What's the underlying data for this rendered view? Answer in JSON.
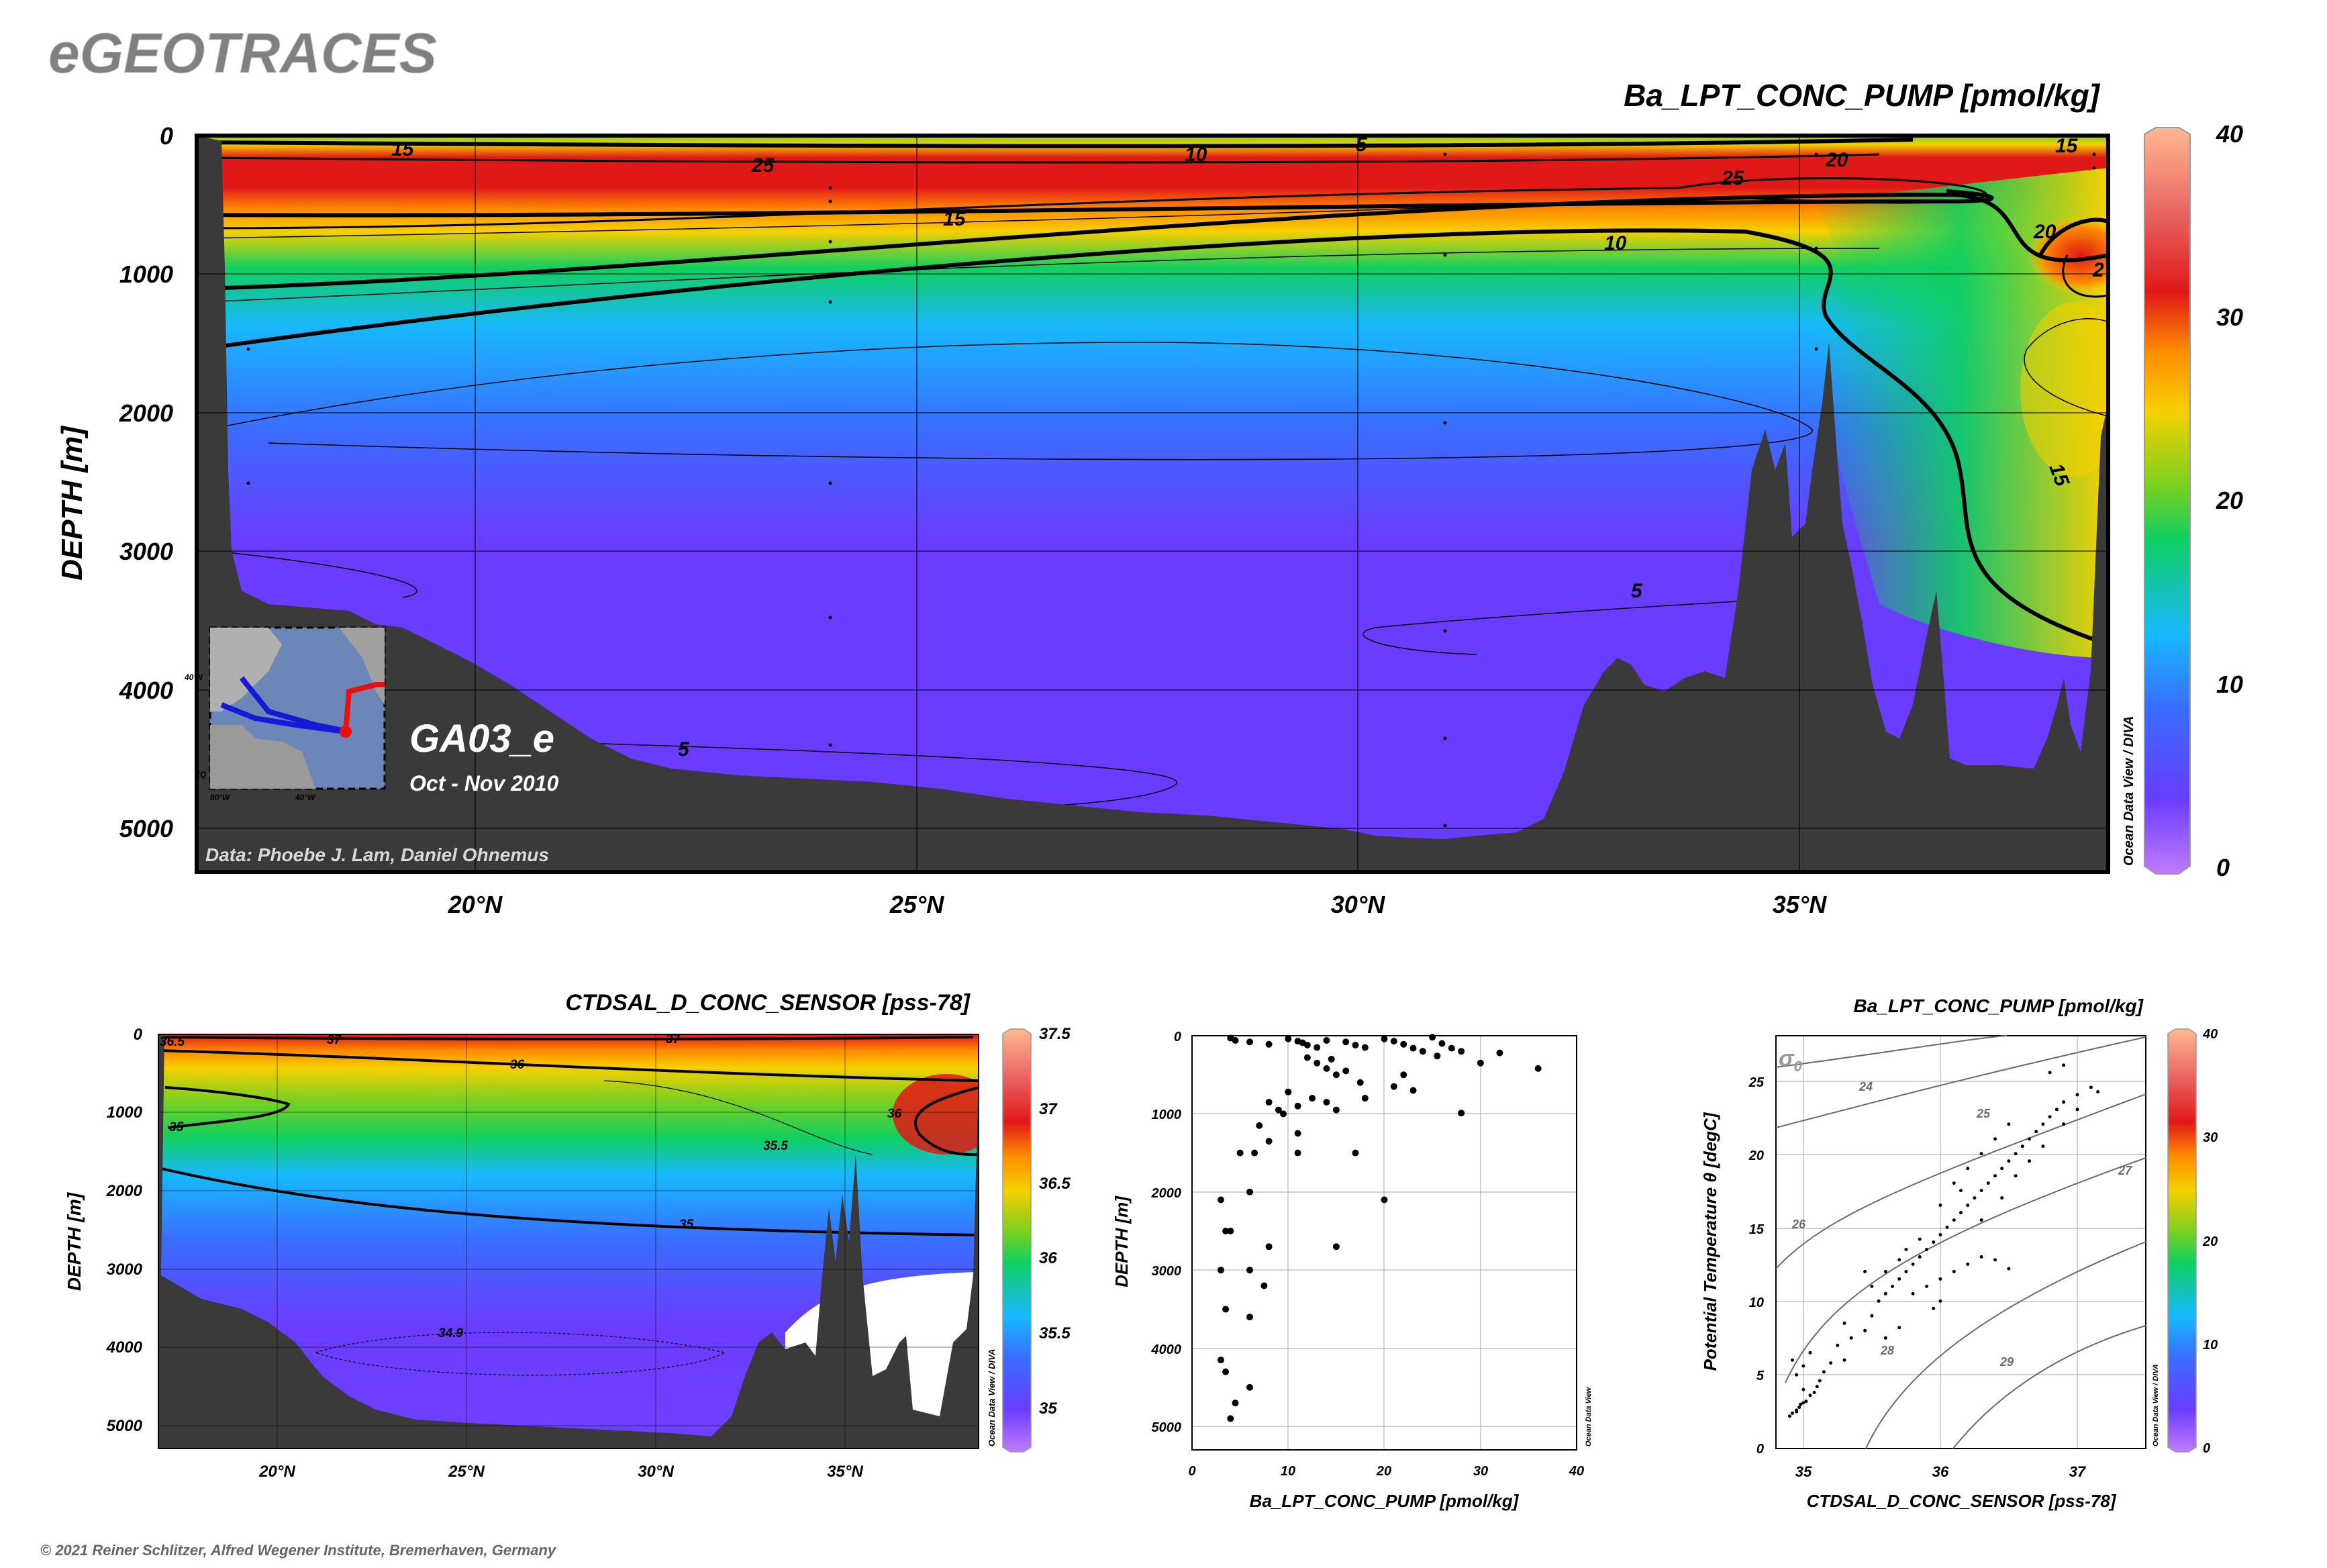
{
  "header": {
    "brand": "eGEOTRACES",
    "copyright": "© 2021 Reiner Schlitzer, Alfred Wegener Institute, Bremerhaven, Germany"
  },
  "colors": {
    "land": "#3a3a3a",
    "ink": "#000000",
    "brand_gray": "#808080",
    "scale": [
      "#c07cff",
      "#6a3cff",
      "#3a6cff",
      "#18b8ff",
      "#10d060",
      "#7ad020",
      "#f6d000",
      "#ff8c00",
      "#e01818",
      "#e86060",
      "#ffb890"
    ]
  },
  "main_section": {
    "title": "Ba_LPT_CONC_PUMP [pmol/kg]",
    "ylabel": "DEPTH [m]",
    "y_ticks": [
      "0",
      "1000",
      "2000",
      "3000",
      "4000",
      "5000"
    ],
    "x_ticks": [
      "20°N",
      "25°N",
      "30°N",
      "35°N"
    ],
    "colorbar_ticks": [
      "0",
      "10",
      "20",
      "30",
      "40"
    ],
    "contour_labels": [
      "15",
      "10",
      "5",
      "25",
      "15",
      "10",
      "5",
      "25",
      "20",
      "15",
      "20",
      "2",
      "15",
      "5",
      "5"
    ],
    "cruise": "GA03_e",
    "dates": "Oct - Nov 2010",
    "credit": "Data: Phoebe J. Lam, Daniel Ohnemus",
    "watermark": "Ocean Data View / DIVA",
    "inset_labels": [
      "40°N",
      "EQ",
      "80°W",
      "40°W"
    ]
  },
  "salinity_section": {
    "title": "CTDSAL_D_CONC_SENSOR [pss-78]",
    "ylabel": "DEPTH [m]",
    "y_ticks": [
      "0",
      "1000",
      "2000",
      "3000",
      "4000",
      "5000"
    ],
    "x_ticks": [
      "20°N",
      "25°N",
      "30°N",
      "35°N"
    ],
    "colorbar_ticks": [
      "37.5",
      "37",
      "36.5",
      "36",
      "35.5",
      "35"
    ],
    "contour_labels": [
      "36.5",
      "37",
      "37",
      "36",
      "35",
      "35.5",
      "36",
      "35",
      "34.9"
    ],
    "watermark": "Ocean Data View / DIVA"
  },
  "profile_plot": {
    "xlabel": "Ba_LPT_CONC_PUMP [pmol/kg]",
    "ylabel": "DEPTH [m]",
    "x_ticks": [
      "0",
      "10",
      "20",
      "30",
      "40"
    ],
    "y_ticks": [
      "0",
      "1000",
      "2000",
      "3000",
      "4000",
      "5000"
    ],
    "watermark": "Ocean Data View"
  },
  "ts_plot": {
    "title": "Ba_LPT_CONC_PUMP [pmol/kg]",
    "xlabel": "CTDSAL_D_CONC_SENSOR [pss-78]",
    "ylabel": "Potential Temperature θ [degC]",
    "x_ticks": [
      "35",
      "36",
      "37"
    ],
    "y_ticks": [
      "0",
      "5",
      "10",
      "15",
      "20",
      "25"
    ],
    "sigma_label": "σ",
    "sigma_sub": "0",
    "isopycnal_labels": [
      "24",
      "25",
      "26",
      "27",
      "28",
      "29"
    ],
    "colorbar_ticks": [
      "0",
      "10",
      "20",
      "30",
      "40"
    ],
    "watermark": "Ocean Data View / DIVA"
  },
  "chart_data": [
    {
      "type": "scatter",
      "title": "",
      "xlabel": "Ba_LPT_CONC_PUMP [pmol/kg]",
      "ylabel": "DEPTH [m]",
      "xlim": [
        0,
        40
      ],
      "ylim": [
        5300,
        0
      ],
      "points": [
        [
          4,
          30
        ],
        [
          4.5,
          60
        ],
        [
          6,
          80
        ],
        [
          8,
          110
        ],
        [
          10,
          40
        ],
        [
          11,
          70
        ],
        [
          11.5,
          90
        ],
        [
          12,
          120
        ],
        [
          13,
          150
        ],
        [
          14,
          60
        ],
        [
          16,
          80
        ],
        [
          17,
          120
        ],
        [
          18,
          150
        ],
        [
          20,
          40
        ],
        [
          21,
          70
        ],
        [
          22,
          110
        ],
        [
          23,
          160
        ],
        [
          24,
          200
        ],
        [
          25,
          20
        ],
        [
          25.5,
          260
        ],
        [
          26,
          100
        ],
        [
          27,
          160
        ],
        [
          28,
          200
        ],
        [
          30,
          350
        ],
        [
          32,
          220
        ],
        [
          36,
          420
        ],
        [
          12,
          280
        ],
        [
          13,
          350
        ],
        [
          14,
          420
        ],
        [
          15,
          500
        ],
        [
          14.5,
          300
        ],
        [
          16,
          450
        ],
        [
          17.5,
          600
        ],
        [
          18,
          800
        ],
        [
          12.5,
          800
        ],
        [
          14,
          850
        ],
        [
          15,
          950
        ],
        [
          21,
          650
        ],
        [
          22,
          500
        ],
        [
          23,
          700
        ],
        [
          10,
          720
        ],
        [
          11,
          900
        ],
        [
          8,
          850
        ],
        [
          9,
          950
        ],
        [
          9.5,
          1000
        ],
        [
          7,
          1150
        ],
        [
          8,
          1350
        ],
        [
          5,
          1500
        ],
        [
          6.5,
          1500
        ],
        [
          11,
          1250
        ],
        [
          11,
          1500
        ],
        [
          17,
          1500
        ],
        [
          28,
          990
        ],
        [
          6,
          2000
        ],
        [
          3,
          2100
        ],
        [
          4,
          2500
        ],
        [
          3.5,
          2500
        ],
        [
          20,
          2100
        ],
        [
          8,
          2700
        ],
        [
          15,
          2700
        ],
        [
          3,
          3000
        ],
        [
          6,
          3000
        ],
        [
          7.5,
          3200
        ],
        [
          3.5,
          3500
        ],
        [
          6,
          3600
        ],
        [
          3,
          4150
        ],
        [
          3.5,
          4300
        ],
        [
          6,
          4500
        ],
        [
          4.5,
          4700
        ],
        [
          4,
          4900
        ]
      ]
    },
    {
      "type": "scatter",
      "title": "Ba_LPT_CONC_PUMP [pmol/kg]",
      "xlabel": "CTDSAL_D_CONC_SENSOR [pss-78]",
      "ylabel": "Potential Temperature θ [degC]",
      "xlim": [
        34.8,
        37.5
      ],
      "ylim": [
        0,
        28
      ],
      "points": [
        [
          34.9,
          2.2
        ],
        [
          34.92,
          2.4
        ],
        [
          34.95,
          2.6
        ],
        [
          34.97,
          2.8
        ],
        [
          34.98,
          3.0
        ],
        [
          35.0,
          3.1
        ],
        [
          34.95,
          2.5
        ],
        [
          35.02,
          3.2
        ],
        [
          35.05,
          3.6
        ],
        [
          35.0,
          4.0
        ],
        [
          35.08,
          3.8
        ],
        [
          35.1,
          4.2
        ],
        [
          35.12,
          4.6
        ],
        [
          34.95,
          5.0
        ],
        [
          35.0,
          5.6
        ],
        [
          34.92,
          6.0
        ],
        [
          35.05,
          6.5
        ],
        [
          35.15,
          5.2
        ],
        [
          35.2,
          5.8
        ],
        [
          35.3,
          6.0
        ],
        [
          35.25,
          7.0
        ],
        [
          35.35,
          7.5
        ],
        [
          35.3,
          8.5
        ],
        [
          35.45,
          8.0
        ],
        [
          35.5,
          9.0
        ],
        [
          35.55,
          10.0
        ],
        [
          35.6,
          10.5
        ],
        [
          35.65,
          11.0
        ],
        [
          35.7,
          11.5
        ],
        [
          35.75,
          12.0
        ],
        [
          35.8,
          12.5
        ],
        [
          35.85,
          13.0
        ],
        [
          35.9,
          13.5
        ],
        [
          35.95,
          14.0
        ],
        [
          36.0,
          14.5
        ],
        [
          36.05,
          15.0
        ],
        [
          36.1,
          15.5
        ],
        [
          36.15,
          16.0
        ],
        [
          36.2,
          16.5
        ],
        [
          36.25,
          17.0
        ],
        [
          36.3,
          17.5
        ],
        [
          36.35,
          18.0
        ],
        [
          36.4,
          18.5
        ],
        [
          36.45,
          19.0
        ],
        [
          36.5,
          19.5
        ],
        [
          36.55,
          20.0
        ],
        [
          36.6,
          20.5
        ],
        [
          36.65,
          21.0
        ],
        [
          36.7,
          21.5
        ],
        [
          36.75,
          22.0
        ],
        [
          36.8,
          22.5
        ],
        [
          36.85,
          23.0
        ],
        [
          36.9,
          23.5
        ],
        [
          37.0,
          24.0
        ],
        [
          37.1,
          24.5
        ],
        [
          37.15,
          24.2
        ],
        [
          36.8,
          25.5
        ],
        [
          36.9,
          26.0
        ],
        [
          35.6,
          12.0
        ],
        [
          35.7,
          12.8
        ],
        [
          35.75,
          13.5
        ],
        [
          35.85,
          14.2
        ],
        [
          35.9,
          11.0
        ],
        [
          36.0,
          11.5
        ],
        [
          36.1,
          12.0
        ],
        [
          36.2,
          12.5
        ],
        [
          36.3,
          13.0
        ],
        [
          36.4,
          12.8
        ],
        [
          36.5,
          12.2
        ],
        [
          36.0,
          10.0
        ],
        [
          35.95,
          9.5
        ],
        [
          35.8,
          10.5
        ],
        [
          35.6,
          7.5
        ],
        [
          35.7,
          8.2
        ],
        [
          35.5,
          11.0
        ],
        [
          35.45,
          12.0
        ],
        [
          36.1,
          18.0
        ],
        [
          36.2,
          19.0
        ],
        [
          36.3,
          20.0
        ],
        [
          36.4,
          21.0
        ],
        [
          36.0,
          16.5
        ],
        [
          36.15,
          17.5
        ],
        [
          36.45,
          17.0
        ],
        [
          36.55,
          18.5
        ],
        [
          36.65,
          19.5
        ],
        [
          36.75,
          20.5
        ],
        [
          36.9,
          22.0
        ],
        [
          37.0,
          23.0
        ],
        [
          36.5,
          22.0
        ],
        [
          36.3,
          15.5
        ]
      ]
    }
  ]
}
